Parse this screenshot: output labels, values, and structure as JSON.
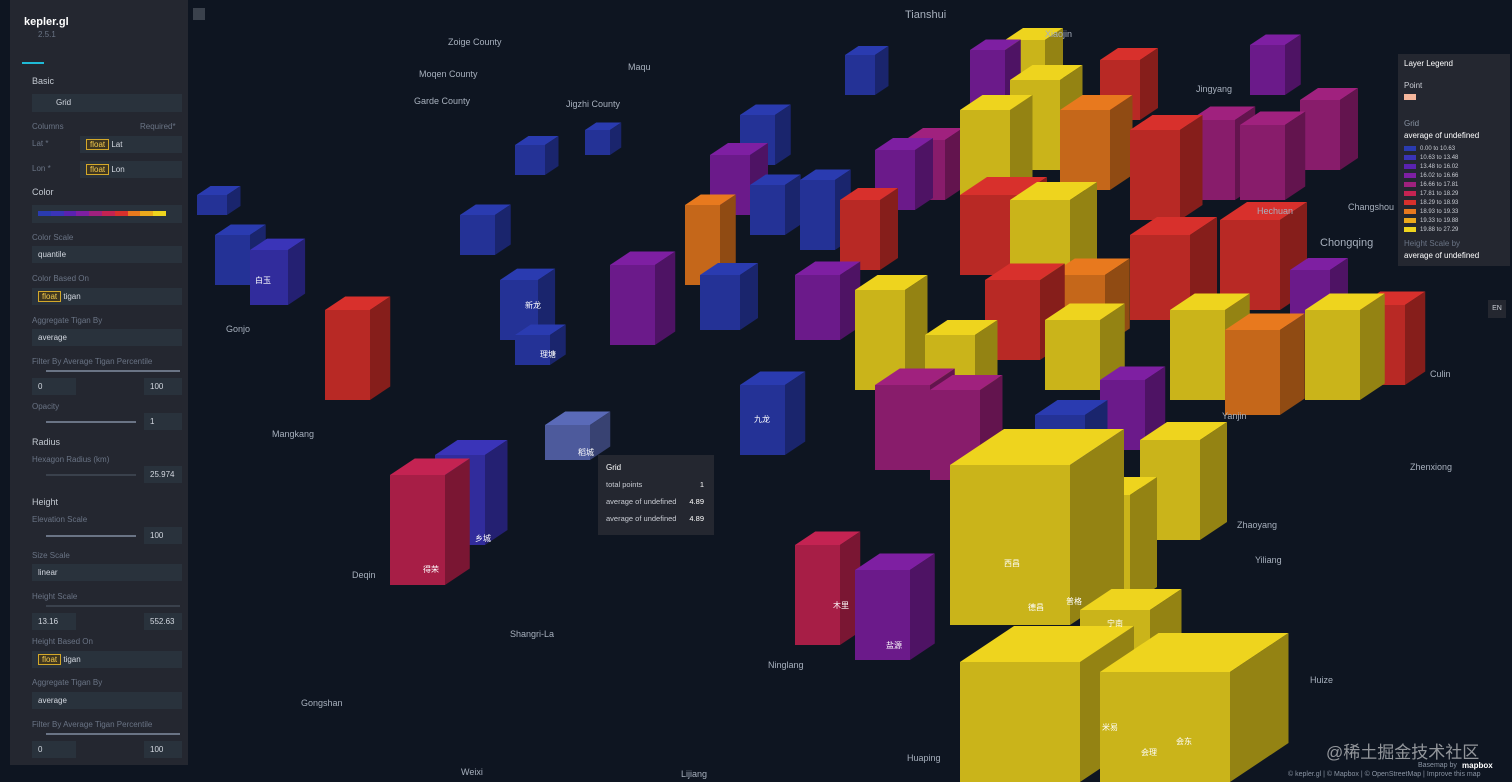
{
  "header": {
    "title": "kepler.gl",
    "version": "2.5.1"
  },
  "basic": {
    "section": "Basic",
    "layer_type": "Grid",
    "columns": "Columns",
    "required": "Required*",
    "fields": [
      {
        "label": "Lat *",
        "type": "float",
        "value": "Lat"
      },
      {
        "label": "Lon *",
        "type": "float",
        "value": "Lon"
      }
    ]
  },
  "color": {
    "section": "Color",
    "scale_label": "Color Scale",
    "scale": "quantile",
    "based_on_label": "Color Based On",
    "based_type": "float",
    "based_field": "tigan",
    "aggregate_label": "Aggregate Tigan By",
    "aggregate": "average",
    "filter_label": "Filter By Average Tigan Percentile",
    "filter_min": 0,
    "filter_max": 100,
    "opacity_label": "Opacity",
    "opacity": 1
  },
  "radius": {
    "section": "Radius",
    "label": "Hexagon Radius (km)",
    "value": 25.974
  },
  "height": {
    "section": "Height",
    "elevation_label": "Elevation Scale",
    "elevation": 100,
    "size_label": "Size Scale",
    "size": "linear",
    "hscale_label": "Height Scale",
    "hmin": 13.16,
    "hmax": 552.63,
    "based_on_label": "Height Based On",
    "based_type": "float",
    "based_field": "tigan",
    "aggregate_label": "Aggregate Tigan By",
    "aggregate": "average",
    "filter_label": "Filter By Average Tigan Percentile",
    "filter_min": 0,
    "filter_max": 100
  },
  "legend": {
    "title": "Layer Legend",
    "point": "Point",
    "grid": "Grid",
    "color_by": "average of undefined",
    "items": [
      {
        "label": "0.00 to 10.63",
        "color": "#2a3bb0"
      },
      {
        "label": "10.63 to 13.48",
        "color": "#3a34b8"
      },
      {
        "label": "13.48 to 16.02",
        "color": "#5a22b0"
      },
      {
        "label": "16.02 to 16.66",
        "color": "#7e1fa2"
      },
      {
        "label": "16.66 to 17.81",
        "color": "#a0217e"
      },
      {
        "label": "17.81 to 18.29",
        "color": "#c42352"
      },
      {
        "label": "18.29 to 18.93",
        "color": "#d8302c"
      },
      {
        "label": "18.93 to 19.33",
        "color": "#e8791e"
      },
      {
        "label": "19.33 to 19.88",
        "color": "#eca91c"
      },
      {
        "label": "19.88 to 27.29",
        "color": "#eed41e"
      }
    ],
    "height_by": "Height Scale by",
    "height_field": "average of undefined"
  },
  "tooltip": {
    "title": "Grid",
    "rows": [
      {
        "label": "total points",
        "value": 1
      },
      {
        "label": "average of undefined",
        "value": 4.89
      },
      {
        "label": "average of undefined",
        "value": 4.89
      }
    ]
  },
  "map_labels": [
    "Tianshui",
    "Chongqing",
    "Gonjo",
    "Mangkang",
    "Deqin",
    "Shangri-La",
    "Gongshan",
    "Weixi",
    "Lijiang",
    "Ninglang",
    "Huaping",
    "Huize",
    "Yiliang",
    "Zhaoyang",
    "Zhenxiong",
    "Culin",
    "Hechuan",
    "Changshou",
    "Yanjin",
    "Maqu",
    "Jingyang",
    "Zoige County",
    "Jigzhi County",
    "Moqen County",
    "Garde County",
    "Xiaojin"
  ],
  "box_labels": [
    "得荣",
    "乡城",
    "稻城",
    "九龙",
    "木里",
    "盐源",
    "宁南",
    "会东",
    "会理",
    "米易",
    "西昌",
    "普格",
    "理塘",
    "新龙",
    "白玉",
    "德昌"
  ],
  "lang": "EN",
  "attribution": "© kepler.gl | © Mapbox | © OpenStreetMap | Improve this map",
  "basemap": "Basemap by",
  "mapbox": "mapbox",
  "watermark": "@稀土掘金技术社区"
}
